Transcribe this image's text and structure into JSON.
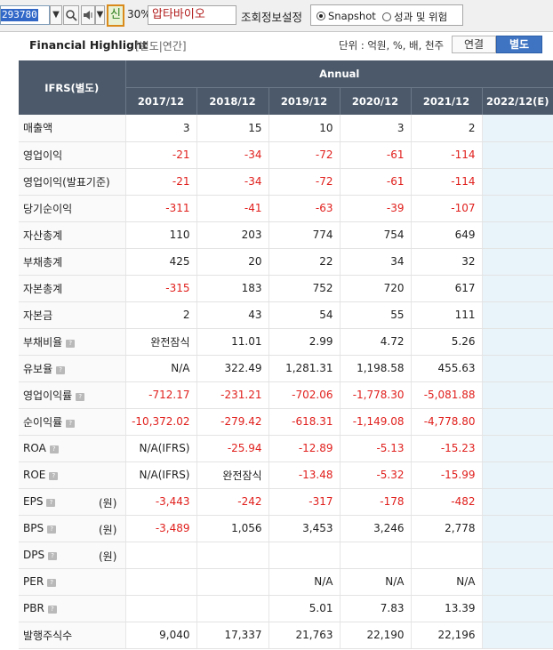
{
  "toolbar": {
    "stock_code": "293780",
    "sin_label": "신",
    "percent": "30%",
    "company_name": "압타바이오",
    "settings_label": "조회정보설정",
    "radio_snapshot": "Snapshot",
    "radio_risk": "성과 및 위험",
    "selected_radio": "Snapshot"
  },
  "header": {
    "title": "Financial Highlight",
    "subtitle": "[별도|연간]",
    "unit": "단위 : 억원, %, 배, 천주",
    "tab_consolidated": "연결",
    "tab_separate": "별도",
    "active_tab": "별도"
  },
  "table": {
    "corner": "IFRS(별도)",
    "group": "Annual",
    "years": [
      "2017/12",
      "2018/12",
      "2019/12",
      "2020/12",
      "2021/12",
      "2022/12(E)"
    ],
    "rows": [
      {
        "label": "매출액",
        "help": false,
        "unit": "",
        "values": [
          "3",
          "15",
          "10",
          "3",
          "2",
          ""
        ]
      },
      {
        "label": "영업이익",
        "help": false,
        "unit": "",
        "values": [
          "-21",
          "-34",
          "-72",
          "-61",
          "-114",
          ""
        ]
      },
      {
        "label": "영업이익(발표기준)",
        "help": false,
        "unit": "",
        "values": [
          "-21",
          "-34",
          "-72",
          "-61",
          "-114",
          ""
        ]
      },
      {
        "label": "당기순이익",
        "help": false,
        "unit": "",
        "values": [
          "-311",
          "-41",
          "-63",
          "-39",
          "-107",
          ""
        ]
      },
      {
        "label": "자산총계",
        "help": false,
        "unit": "",
        "values": [
          "110",
          "203",
          "774",
          "754",
          "649",
          ""
        ]
      },
      {
        "label": "부채총계",
        "help": false,
        "unit": "",
        "values": [
          "425",
          "20",
          "22",
          "34",
          "32",
          ""
        ]
      },
      {
        "label": "자본총계",
        "help": false,
        "unit": "",
        "values": [
          "-315",
          "183",
          "752",
          "720",
          "617",
          ""
        ]
      },
      {
        "label": "자본금",
        "help": false,
        "unit": "",
        "values": [
          "2",
          "43",
          "54",
          "55",
          "111",
          ""
        ]
      },
      {
        "label": "부채비율",
        "help": true,
        "unit": "",
        "values": [
          "완전잠식",
          "11.01",
          "2.99",
          "4.72",
          "5.26",
          ""
        ]
      },
      {
        "label": "유보율",
        "help": true,
        "unit": "",
        "values": [
          "N/A",
          "322.49",
          "1,281.31",
          "1,198.58",
          "455.63",
          ""
        ]
      },
      {
        "label": "영업이익률",
        "help": true,
        "unit": "",
        "values": [
          "-712.17",
          "-231.21",
          "-702.06",
          "-1,778.30",
          "-5,081.88",
          ""
        ]
      },
      {
        "label": "순이익률",
        "help": true,
        "unit": "",
        "values": [
          "-10,372.02",
          "-279.42",
          "-618.31",
          "-1,149.08",
          "-4,778.80",
          ""
        ]
      },
      {
        "label": "ROA",
        "help": true,
        "unit": "",
        "values": [
          "N/A(IFRS)",
          "-25.94",
          "-12.89",
          "-5.13",
          "-15.23",
          ""
        ]
      },
      {
        "label": "ROE",
        "help": true,
        "unit": "",
        "values": [
          "N/A(IFRS)",
          "완전잠식",
          "-13.48",
          "-5.32",
          "-15.99",
          ""
        ]
      },
      {
        "label": "EPS",
        "help": true,
        "unit": "(원)",
        "values": [
          "-3,443",
          "-242",
          "-317",
          "-178",
          "-482",
          ""
        ]
      },
      {
        "label": "BPS",
        "help": true,
        "unit": "(원)",
        "values": [
          "-3,489",
          "1,056",
          "3,453",
          "3,246",
          "2,778",
          ""
        ]
      },
      {
        "label": "DPS",
        "help": true,
        "unit": "(원)",
        "values": [
          "",
          "",
          "",
          "",
          "",
          ""
        ]
      },
      {
        "label": "PER",
        "help": true,
        "unit": "",
        "values": [
          "",
          "",
          "N/A",
          "N/A",
          "N/A",
          ""
        ]
      },
      {
        "label": "PBR",
        "help": true,
        "unit": "",
        "values": [
          "",
          "",
          "5.01",
          "7.83",
          "13.39",
          ""
        ]
      },
      {
        "label": "발행주식수",
        "help": false,
        "unit": "",
        "values": [
          "9,040",
          "17,337",
          "21,763",
          "22,190",
          "22,196",
          ""
        ]
      }
    ]
  },
  "colors": {
    "header_bg": "#4b596a",
    "negative": "#e0201d",
    "estimate_bg": "#e9f4fa",
    "tab_active": "#3f74c2"
  }
}
